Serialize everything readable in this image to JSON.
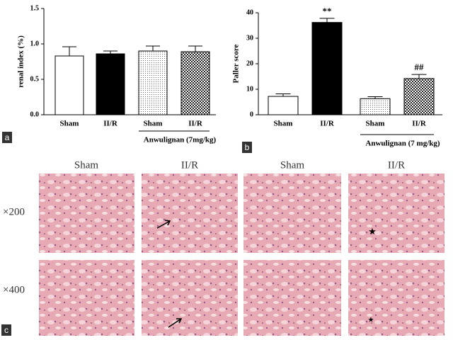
{
  "chart_data": [
    {
      "type": "bar",
      "ylabel": "renal index (%)",
      "categories": [
        "Sham",
        "II/R",
        "Sham",
        "II/R"
      ],
      "values": [
        0.83,
        0.86,
        0.9,
        0.89
      ],
      "errors": [
        0.13,
        0.04,
        0.07,
        0.08
      ],
      "bar_fills": [
        "white",
        "black",
        "dots",
        "checks"
      ],
      "group_label": "Anwulignan (7mg/kg)",
      "ylim": [
        0,
        1.5
      ],
      "yticks": [
        {
          "value": 0,
          "label": "0.0"
        },
        0.5,
        {
          "value": 1,
          "label": "1.0"
        },
        1.5
      ],
      "panel_label": "a"
    },
    {
      "type": "bar",
      "ylabel": "Paller score",
      "categories": [
        "Sham",
        "II/R",
        "Sham",
        "II/R"
      ],
      "values": [
        7.2,
        36.2,
        6.3,
        14.2
      ],
      "errors": [
        1.0,
        1.6,
        0.8,
        1.6
      ],
      "bar_fills": [
        "white",
        "black",
        "dots",
        "checks"
      ],
      "annotations": [
        null,
        "**",
        null,
        "##"
      ],
      "group_label": "Anwulignan (7 mg/kg)",
      "ylim": [
        0,
        40
      ],
      "yticks": [
        0,
        10,
        20,
        30,
        40
      ],
      "panel_label": "b"
    }
  ],
  "panel_c": {
    "label": "c",
    "columns": [
      "Sham",
      "II/R",
      "Sham",
      "II/R"
    ],
    "rows": [
      "×200",
      "×400"
    ]
  }
}
